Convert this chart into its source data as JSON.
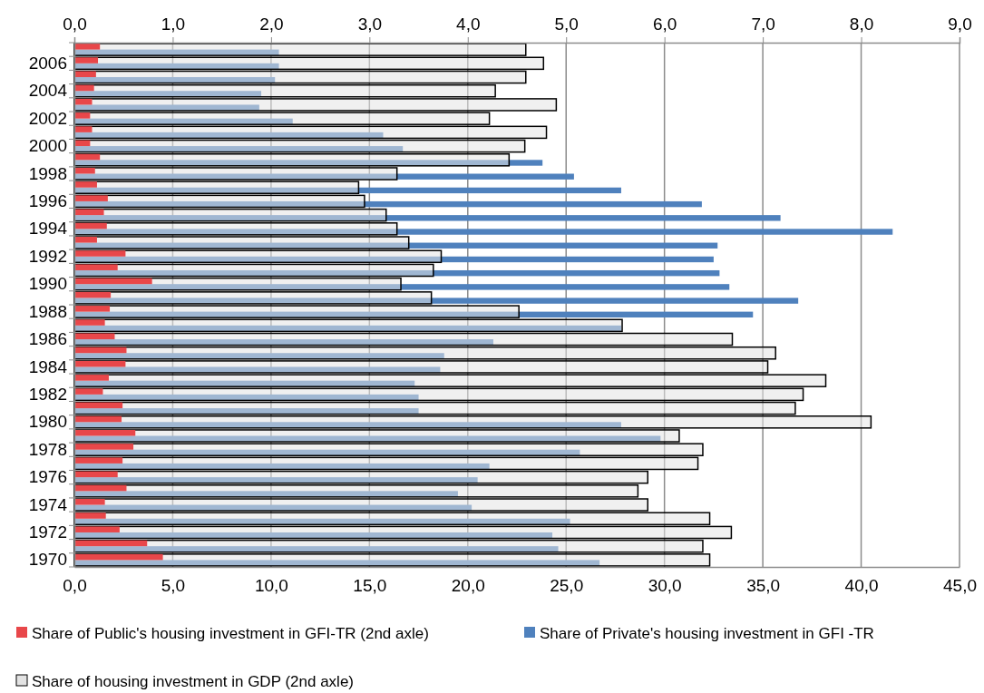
{
  "chart_data": {
    "type": "bar",
    "orientation": "horizontal",
    "categories": [
      null,
      "2006",
      null,
      "2004",
      null,
      "2002",
      null,
      "2000",
      null,
      "1998",
      null,
      "1996",
      null,
      "1994",
      null,
      "1992",
      null,
      "1990",
      null,
      "1988",
      null,
      "1986",
      null,
      "1984",
      null,
      "1982",
      null,
      "1980",
      null,
      "1978",
      null,
      "1976",
      null,
      "1974",
      null,
      "1972",
      null,
      "1970"
    ],
    "series": [
      {
        "name": "Share of Private's housing investment in GFI -TR",
        "color": "#4f81bd",
        "values": [
          10.4,
          10.4,
          10.2,
          9.5,
          9.4,
          11.1,
          15.7,
          16.7,
          23.8,
          25.4,
          27.8,
          31.9,
          35.9,
          41.6,
          32.7,
          32.5,
          32.8,
          33.3,
          36.8,
          34.5,
          27.8,
          21.3,
          18.8,
          18.6,
          17.3,
          17.5,
          17.5,
          27.8,
          29.8,
          25.7,
          21.1,
          20.5,
          19.5,
          20.2,
          25.2,
          24.3,
          24.6,
          26.7
        ]
      },
      {
        "name": "Share of housing investment in GDP (2nd axle)",
        "color": "#e3e3e3",
        "axis": "x2",
        "values": [
          4.59,
          4.77,
          4.59,
          4.28,
          4.9,
          4.22,
          4.8,
          4.58,
          4.42,
          3.28,
          2.89,
          2.95,
          3.17,
          3.28,
          3.4,
          3.73,
          3.65,
          3.32,
          3.63,
          4.52,
          5.57,
          6.69,
          7.13,
          7.05,
          7.64,
          7.41,
          7.33,
          8.1,
          6.15,
          6.39,
          6.34,
          5.83,
          5.73,
          5.83,
          6.46,
          6.68,
          6.39,
          6.46
        ]
      },
      {
        "name": "Share of Public's housing investment in GFI-TR (2nd axle)",
        "color": "#e8474a",
        "axis": "x2",
        "values": [
          0.26,
          0.24,
          0.22,
          0.2,
          0.18,
          0.16,
          0.18,
          0.16,
          0.26,
          0.21,
          0.23,
          0.34,
          0.3,
          0.33,
          0.23,
          0.52,
          0.44,
          0.79,
          0.37,
          0.36,
          0.31,
          0.41,
          0.53,
          0.52,
          0.35,
          0.29,
          0.49,
          0.48,
          0.62,
          0.6,
          0.49,
          0.44,
          0.53,
          0.31,
          0.32,
          0.46,
          0.74,
          0.9
        ]
      }
    ],
    "xlim": [
      0,
      45
    ],
    "xticks": [
      {
        "value": 0,
        "label": "0,0"
      },
      {
        "value": 5,
        "label": "5,0"
      },
      {
        "value": 10,
        "label": "10,0"
      },
      {
        "value": 15,
        "label": "15,0"
      },
      {
        "value": 20,
        "label": "20,0"
      },
      {
        "value": 25,
        "label": "25,0"
      },
      {
        "value": 30,
        "label": "30,0"
      },
      {
        "value": 35,
        "label": "35,0"
      },
      {
        "value": 40,
        "label": "40,0"
      },
      {
        "value": 45,
        "label": "45,0"
      }
    ],
    "x2lim": [
      0,
      9
    ],
    "x2ticks": [
      {
        "value": 0,
        "label": "0,0"
      },
      {
        "value": 1,
        "label": "1,0"
      },
      {
        "value": 2,
        "label": "2,0"
      },
      {
        "value": 3,
        "label": "3,0"
      },
      {
        "value": 4,
        "label": "4,0"
      },
      {
        "value": 5,
        "label": "5,0"
      },
      {
        "value": 6,
        "label": "6,0"
      },
      {
        "value": 7,
        "label": "7,0"
      },
      {
        "value": 8,
        "label": "8,0"
      },
      {
        "value": 9,
        "label": "9,0"
      }
    ],
    "grid": "x",
    "legend": "bottom"
  }
}
